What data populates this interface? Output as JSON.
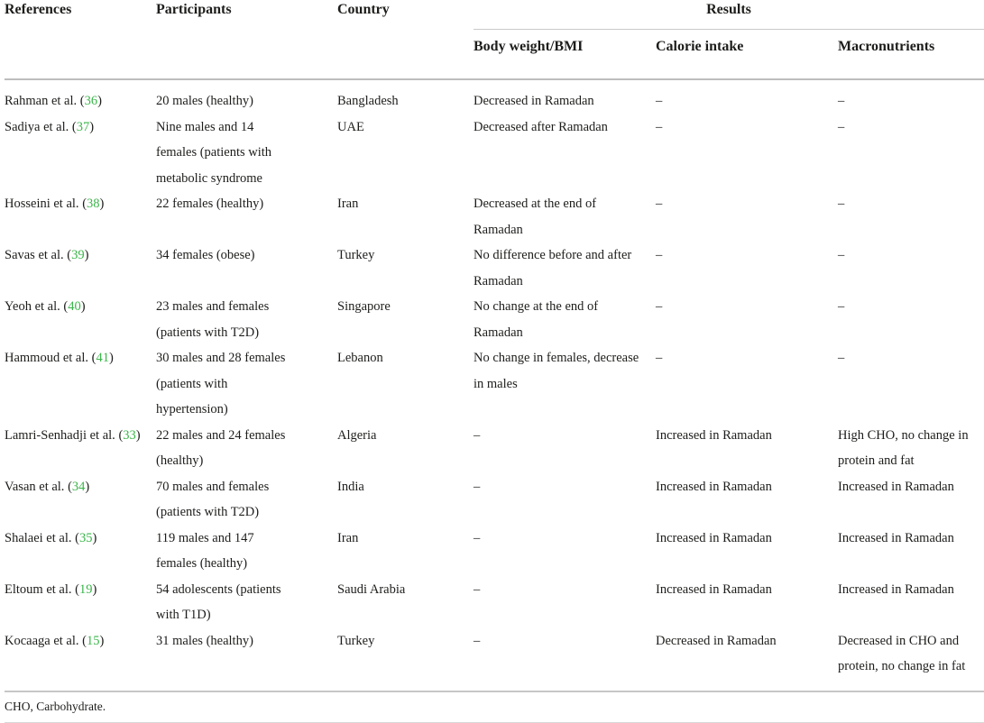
{
  "colors": {
    "accent_green": "#3bb54a",
    "rule_gray": "#c6c6c6",
    "text": "#1d1d1b"
  },
  "table": {
    "headers": {
      "references": "References",
      "participants": "Participants",
      "country": "Country"
    },
    "results_group": {
      "label": "Results",
      "subcolumns": {
        "body_weight": "Body weight/BMI",
        "calorie_intake": "Calorie intake",
        "macronutrients": "Macronutrients"
      }
    },
    "rows": [
      {
        "ref_name": "Rahman et al.",
        "ref_num": "36",
        "participants": "20 males (healthy)",
        "country": "Bangladesh",
        "body_weight": "Decreased in Ramadan",
        "calorie": "–",
        "macro": "–"
      },
      {
        "ref_name": "Sadiya et al.",
        "ref_num": "37",
        "participants": "Nine males and 14 females (patients with metabolic syndrome",
        "country": "UAE",
        "body_weight": "Decreased after Ramadan",
        "calorie": "–",
        "macro": "–"
      },
      {
        "ref_name": "Hosseini et al.",
        "ref_num": "38",
        "participants": "22 females (healthy)",
        "country": "Iran",
        "body_weight": "Decreased at the end of Ramadan",
        "calorie": "–",
        "macro": "–"
      },
      {
        "ref_name": "Savas et al.",
        "ref_num": "39",
        "participants": "34 females (obese)",
        "country": "Turkey",
        "body_weight": "No difference before and after Ramadan",
        "calorie": "–",
        "macro": "–"
      },
      {
        "ref_name": "Yeoh et al.",
        "ref_num": "40",
        "participants": "23 males and females (patients with T2D)",
        "country": "Singapore",
        "body_weight": "No change at the end of Ramadan",
        "calorie": "–",
        "macro": "–"
      },
      {
        "ref_name": "Hammoud et al.",
        "ref_num": "41",
        "participants": "30 males and 28 females (patients with hypertension)",
        "country": "Lebanon",
        "body_weight": "No change in females, decrease in males",
        "calorie": "–",
        "macro": "–"
      },
      {
        "ref_name": "Lamri-Senhadji et al.",
        "ref_num": "33",
        "participants": "22 males and 24 females (healthy)",
        "country": "Algeria",
        "body_weight": "–",
        "calorie": "Increased in Ramadan",
        "macro": "High CHO, no change in protein and fat"
      },
      {
        "ref_name": "Vasan et al.",
        "ref_num": "34",
        "participants": "70 males and females (patients with T2D)",
        "country": "India",
        "body_weight": "–",
        "calorie": "Increased in Ramadan",
        "macro": "Increased in Ramadan"
      },
      {
        "ref_name": "Shalaei et al.",
        "ref_num": "35",
        "participants": "119 males and 147 females (healthy)",
        "country": "Iran",
        "body_weight": "–",
        "calorie": "Increased in Ramadan",
        "macro": "Increased in Ramadan"
      },
      {
        "ref_name": "Eltoum et al.",
        "ref_num": "19",
        "participants": "54 adolescents (patients with T1D)",
        "country": "Saudi Arabia",
        "body_weight": "–",
        "calorie": "Increased in Ramadan",
        "macro": "Increased in Ramadan"
      },
      {
        "ref_name": "Kocaaga et al.",
        "ref_num": "15",
        "participants": "31 males (healthy)",
        "country": "Turkey",
        "body_weight": "–",
        "calorie": "Decreased in Ramadan",
        "macro": "Decreased in CHO and protein, no change in fat"
      }
    ],
    "footnote": "CHO, Carbohydrate."
  }
}
